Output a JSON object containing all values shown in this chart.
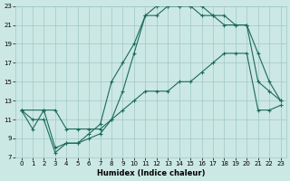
{
  "xlabel": "Humidex (Indice chaleur)",
  "bg_color": "#cce8e4",
  "grid_color": "#a0c8c4",
  "line_color": "#1a6b5a",
  "xlim": [
    -0.5,
    23.5
  ],
  "ylim": [
    7,
    23
  ],
  "xticks": [
    0,
    1,
    2,
    3,
    4,
    5,
    6,
    7,
    8,
    9,
    10,
    11,
    12,
    13,
    14,
    15,
    16,
    17,
    18,
    19,
    20,
    21,
    22,
    23
  ],
  "yticks": [
    7,
    9,
    11,
    13,
    15,
    17,
    19,
    21,
    23
  ],
  "line1_x": [
    0,
    1,
    2,
    3,
    4,
    5,
    6,
    7,
    8,
    9,
    10,
    11,
    12,
    13,
    14,
    15,
    16,
    17,
    18,
    19,
    20,
    21,
    22,
    23
  ],
  "line1_y": [
    12,
    10,
    12,
    12,
    10,
    10,
    10,
    10,
    11,
    14,
    18,
    22,
    22,
    23,
    23,
    23,
    23,
    22,
    22,
    21,
    21,
    18,
    15,
    13
  ],
  "line2_x": [
    0,
    2,
    3,
    4,
    5,
    6,
    7,
    8,
    9,
    10,
    11,
    12,
    13,
    14,
    15,
    16,
    17,
    18,
    19,
    20,
    21,
    22,
    23
  ],
  "line2_y": [
    12,
    12,
    8,
    8.5,
    8.5,
    9.5,
    10.5,
    15,
    17,
    19,
    22,
    23,
    23,
    23,
    23,
    22,
    22,
    21,
    21,
    21,
    15,
    14,
    13
  ],
  "line3_x": [
    0,
    1,
    2,
    3,
    4,
    5,
    6,
    7,
    8,
    9,
    10,
    11,
    12,
    13,
    14,
    15,
    16,
    17,
    18,
    19,
    20,
    21,
    22,
    23
  ],
  "line3_y": [
    12,
    11,
    11,
    7.5,
    8.5,
    8.5,
    9,
    9.5,
    11,
    12,
    13,
    14,
    14,
    14,
    15,
    15,
    16,
    17,
    18,
    18,
    18,
    12,
    12,
    12.5
  ]
}
